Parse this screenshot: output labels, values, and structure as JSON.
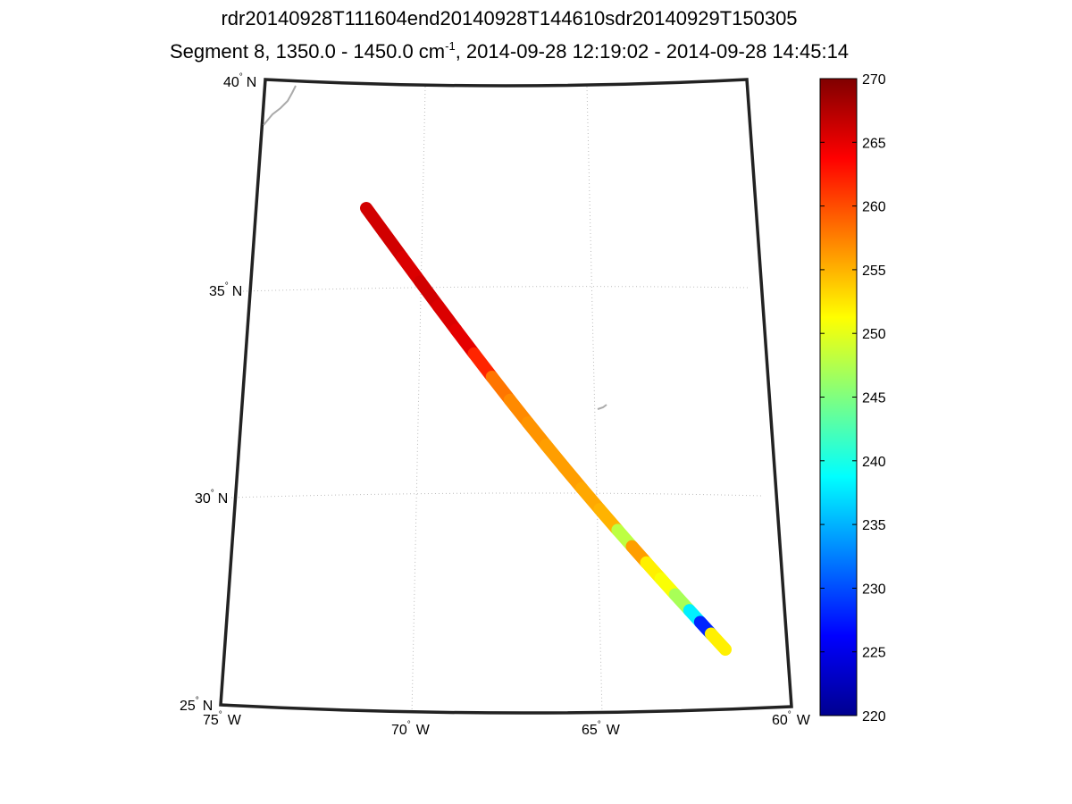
{
  "title": {
    "line1": "rdr20140928T111604end20140928T144610sdr20140929T150305",
    "line2_prefix": "Segment 8, 1350.0 - 1450.0 cm",
    "line2_sup": "-1",
    "line2_suffix": ", 2014-09-28 12:19:02 - 2014-09-28 14:45:14"
  },
  "map": {
    "lat_labels": [
      {
        "deg": "40",
        "dir": "N"
      },
      {
        "deg": "35",
        "dir": "N"
      },
      {
        "deg": "30",
        "dir": "N"
      },
      {
        "deg": "25",
        "dir": "N"
      }
    ],
    "lon_labels": [
      {
        "deg": "75",
        "dir": "W"
      },
      {
        "deg": "70",
        "dir": "W"
      },
      {
        "deg": "65",
        "dir": "W"
      },
      {
        "deg": "60",
        "dir": "W"
      }
    ],
    "degree_symbol": "°"
  },
  "colorbar": {
    "min": 220,
    "max": 270,
    "ticks": [
      "270",
      "265",
      "260",
      "255",
      "250",
      "245",
      "240",
      "235",
      "230",
      "225",
      "220"
    ],
    "colormap": "jet"
  },
  "swath": {
    "segments": [
      {
        "t": 0.0,
        "value": 266
      },
      {
        "t": 0.05,
        "value": 266
      },
      {
        "t": 0.1,
        "value": 265.5
      },
      {
        "t": 0.15,
        "value": 266
      },
      {
        "t": 0.2,
        "value": 265.5
      },
      {
        "t": 0.25,
        "value": 265
      },
      {
        "t": 0.3,
        "value": 262
      },
      {
        "t": 0.35,
        "value": 258
      },
      {
        "t": 0.4,
        "value": 257
      },
      {
        "t": 0.45,
        "value": 256.5
      },
      {
        "t": 0.5,
        "value": 256
      },
      {
        "t": 0.55,
        "value": 256
      },
      {
        "t": 0.6,
        "value": 255.5
      },
      {
        "t": 0.65,
        "value": 255
      },
      {
        "t": 0.7,
        "value": 248
      },
      {
        "t": 0.74,
        "value": 256
      },
      {
        "t": 0.78,
        "value": 252
      },
      {
        "t": 0.82,
        "value": 251
      },
      {
        "t": 0.86,
        "value": 247
      },
      {
        "t": 0.9,
        "value": 238
      },
      {
        "t": 0.93,
        "value": 228
      },
      {
        "t": 0.96,
        "value": 252
      },
      {
        "t": 1.0,
        "value": 254
      }
    ]
  }
}
